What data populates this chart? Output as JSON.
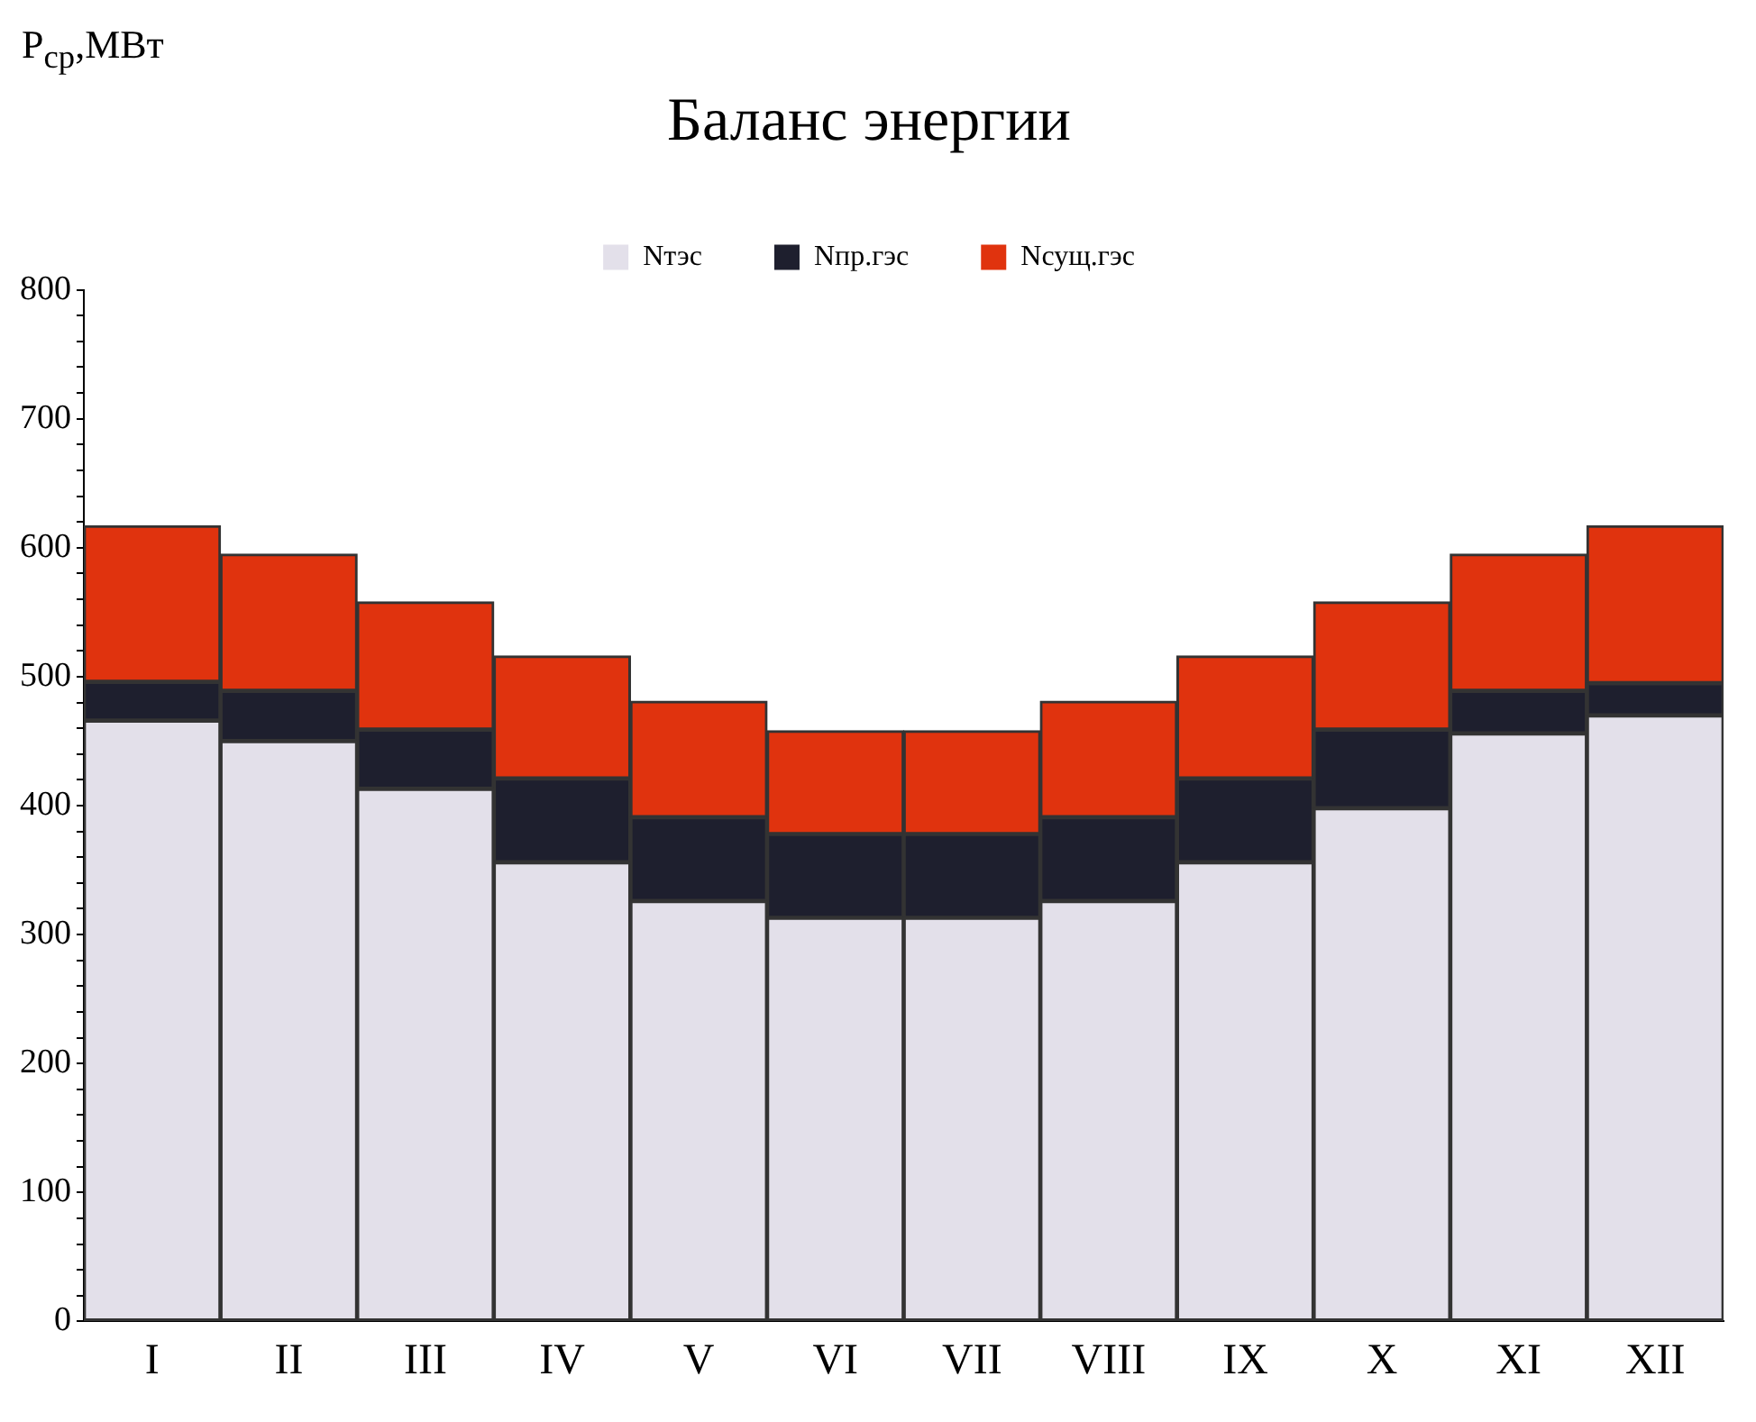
{
  "chart_data": {
    "type": "bar",
    "title": "Баланс энергии",
    "ylabel": "P$_{ср}$,МВт",
    "categories": [
      "I",
      "II",
      "III",
      "IV",
      "V",
      "VI",
      "VII",
      "VIII",
      "IX",
      "X",
      "XI",
      "XII"
    ],
    "stacked": true,
    "series": [
      {
        "name": "Nтэс",
        "color": "#e3e0ea",
        "values": [
          466,
          450,
          413,
          356,
          326,
          313,
          313,
          326,
          356,
          398,
          456,
          470
        ]
      },
      {
        "name": "Nпр.гэс",
        "color": "#1e1f2e",
        "values": [
          30,
          39,
          46,
          65,
          65,
          65,
          65,
          65,
          65,
          61,
          33,
          25
        ]
      },
      {
        "name": "Nсущ.гэс",
        "color": "#e0330e",
        "values": [
          121,
          106,
          99,
          95,
          90,
          80,
          80,
          90,
          95,
          99,
          106,
          122
        ]
      }
    ],
    "ylim": [
      0,
      800
    ],
    "yticks": [
      0,
      {
        "value": 20,
        "label": null
      },
      {
        "value": 40,
        "label": null
      },
      {
        "value": 60,
        "label": null
      },
      {
        "value": 80,
        "label": null
      },
      100,
      {
        "value": 120,
        "label": null
      },
      {
        "value": 140,
        "label": null
      },
      {
        "value": 160,
        "label": null
      },
      {
        "value": 180,
        "label": null
      },
      200,
      {
        "value": 220,
        "label": null
      },
      {
        "value": 240,
        "label": null
      },
      {
        "value": 260,
        "label": null
      },
      {
        "value": 280,
        "label": null
      },
      300,
      {
        "value": 320,
        "label": null
      },
      {
        "value": 340,
        "label": null
      },
      {
        "value": 360,
        "label": null
      },
      {
        "value": 380,
        "label": null
      },
      400,
      {
        "value": 420,
        "label": null
      },
      {
        "value": 440,
        "label": null
      },
      {
        "value": 460,
        "label": null
      },
      {
        "value": 480,
        "label": null
      },
      500,
      {
        "value": 520,
        "label": null
      },
      {
        "value": 540,
        "label": null
      },
      {
        "value": 560,
        "label": null
      },
      {
        "value": 580,
        "label": null
      },
      600,
      {
        "value": 620,
        "label": null
      },
      {
        "value": 640,
        "label": null
      },
      {
        "value": 660,
        "label": null
      },
      {
        "value": 680,
        "label": null
      },
      700,
      {
        "value": 720,
        "label": null
      },
      {
        "value": 740,
        "label": null
      },
      {
        "value": 760,
        "label": null
      },
      {
        "value": 780,
        "label": null
      },
      800
    ],
    "grid": false,
    "legend": "top"
  }
}
